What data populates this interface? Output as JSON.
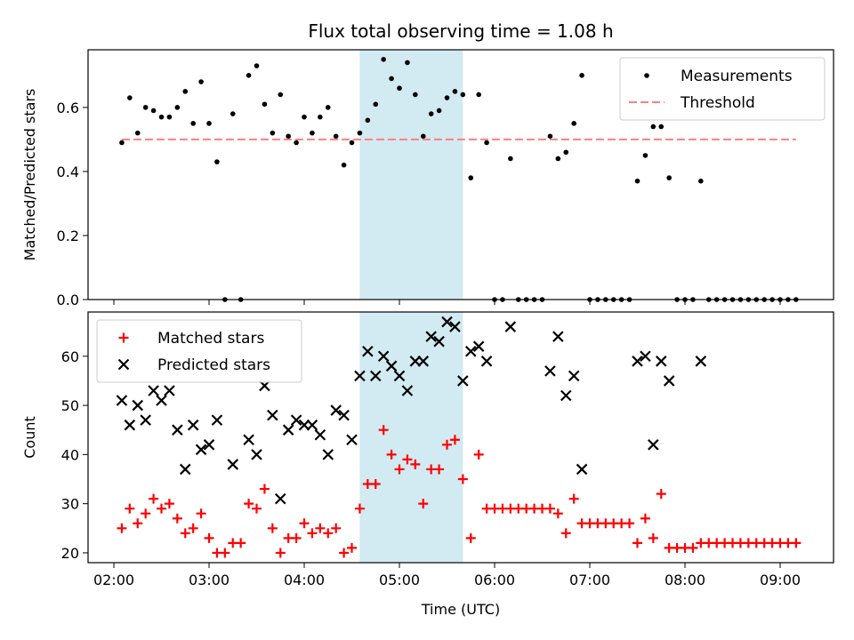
{
  "chart_data": [
    {
      "type": "scatter",
      "title": "Flux total observing time = 1.08 h",
      "xlabel": "",
      "ylabel": "Matched/Predicted stars",
      "xlim": [
        "02:00",
        "09:30"
      ],
      "ylim": [
        0,
        0.78
      ],
      "x_ticks": [
        "02:00",
        "03:00",
        "04:00",
        "05:00",
        "06:00",
        "07:00",
        "08:00",
        "09:00"
      ],
      "y_ticks": [
        "0.0",
        "0.2",
        "0.4",
        "0.6"
      ],
      "highlight_span": {
        "start": "04:35",
        "end": "05:40",
        "color": "#add8e6"
      },
      "legend": {
        "placement": "top-right"
      },
      "series": [
        {
          "name": "Measurements",
          "color": "#000000",
          "marker": "dot",
          "points": [
            [
              "02:05",
              0.49
            ],
            [
              "02:10",
              0.63
            ],
            [
              "02:15",
              0.52
            ],
            [
              "02:20",
              0.6
            ],
            [
              "02:25",
              0.59
            ],
            [
              "02:30",
              0.57
            ],
            [
              "02:35",
              0.57
            ],
            [
              "02:40",
              0.6
            ],
            [
              "02:45",
              0.65
            ],
            [
              "02:50",
              0.55
            ],
            [
              "02:55",
              0.68
            ],
            [
              "03:00",
              0.55
            ],
            [
              "03:05",
              0.43
            ],
            [
              "03:10",
              0.0
            ],
            [
              "03:15",
              0.58
            ],
            [
              "03:20",
              0.0
            ],
            [
              "03:25",
              0.7
            ],
            [
              "03:30",
              0.73
            ],
            [
              "03:35",
              0.61
            ],
            [
              "03:40",
              0.52
            ],
            [
              "03:45",
              0.64
            ],
            [
              "03:50",
              0.51
            ],
            [
              "03:55",
              0.49
            ],
            [
              "04:00",
              0.57
            ],
            [
              "04:05",
              0.52
            ],
            [
              "04:10",
              0.57
            ],
            [
              "04:15",
              0.6
            ],
            [
              "04:20",
              0.51
            ],
            [
              "04:25",
              0.42
            ],
            [
              "04:30",
              0.49
            ],
            [
              "04:35",
              0.52
            ],
            [
              "04:40",
              0.56
            ],
            [
              "04:45",
              0.61
            ],
            [
              "04:50",
              0.75
            ],
            [
              "04:55",
              0.69
            ],
            [
              "05:00",
              0.66
            ],
            [
              "05:05",
              0.74
            ],
            [
              "05:10",
              0.64
            ],
            [
              "05:15",
              0.51
            ],
            [
              "05:20",
              0.58
            ],
            [
              "05:25",
              0.59
            ],
            [
              "05:30",
              0.63
            ],
            [
              "05:35",
              0.65
            ],
            [
              "05:40",
              0.64
            ],
            [
              "05:45",
              0.38
            ],
            [
              "05:50",
              0.64
            ],
            [
              "05:55",
              0.49
            ],
            [
              "06:00",
              0.0
            ],
            [
              "06:05",
              0.0
            ],
            [
              "06:10",
              0.44
            ],
            [
              "06:15",
              0.0
            ],
            [
              "06:20",
              0.0
            ],
            [
              "06:25",
              0.0
            ],
            [
              "06:30",
              0.0
            ],
            [
              "06:35",
              0.51
            ],
            [
              "06:40",
              0.44
            ],
            [
              "06:45",
              0.46
            ],
            [
              "06:50",
              0.55
            ],
            [
              "06:55",
              0.7
            ],
            [
              "07:00",
              0.0
            ],
            [
              "07:05",
              0.0
            ],
            [
              "07:10",
              0.0
            ],
            [
              "07:15",
              0.0
            ],
            [
              "07:20",
              0.0
            ],
            [
              "07:25",
              0.0
            ],
            [
              "07:30",
              0.37
            ],
            [
              "07:35",
              0.45
            ],
            [
              "07:40",
              0.54
            ],
            [
              "07:45",
              0.54
            ],
            [
              "07:50",
              0.38
            ],
            [
              "07:55",
              0.0
            ],
            [
              "08:00",
              0.0
            ],
            [
              "08:05",
              0.0
            ],
            [
              "08:10",
              0.37
            ],
            [
              "08:15",
              0.0
            ],
            [
              "08:20",
              0.0
            ],
            [
              "08:25",
              0.0
            ],
            [
              "08:30",
              0.0
            ],
            [
              "08:35",
              0.0
            ],
            [
              "08:40",
              0.0
            ],
            [
              "08:45",
              0.0
            ],
            [
              "08:50",
              0.0
            ],
            [
              "08:55",
              0.0
            ],
            [
              "09:00",
              0.0
            ],
            [
              "09:05",
              0.0
            ],
            [
              "09:10",
              0.0
            ]
          ]
        },
        {
          "name": "Threshold",
          "color": "#ff7f7f",
          "marker": "dashed-line",
          "points": [
            [
              "02:05",
              0.5
            ],
            [
              "09:10",
              0.5
            ]
          ]
        }
      ]
    },
    {
      "type": "scatter",
      "title": "",
      "xlabel": "Time (UTC)",
      "ylabel": "Count",
      "xlim": [
        "02:00",
        "09:30"
      ],
      "ylim": [
        18,
        69
      ],
      "x_ticks": [
        "02:00",
        "03:00",
        "04:00",
        "05:00",
        "06:00",
        "07:00",
        "08:00",
        "09:00"
      ],
      "y_ticks": [
        "20",
        "30",
        "40",
        "50",
        "60"
      ],
      "highlight_span": {
        "start": "04:35",
        "end": "05:40",
        "color": "#add8e6"
      },
      "legend": {
        "placement": "top-left"
      },
      "series": [
        {
          "name": "Matched stars",
          "color": "#ff0000",
          "marker": "plus",
          "points": [
            [
              "02:05",
              25
            ],
            [
              "02:10",
              29
            ],
            [
              "02:15",
              26
            ],
            [
              "02:20",
              28
            ],
            [
              "02:25",
              31
            ],
            [
              "02:30",
              29
            ],
            [
              "02:35",
              30
            ],
            [
              "02:40",
              27
            ],
            [
              "02:45",
              24
            ],
            [
              "02:50",
              25
            ],
            [
              "02:55",
              28
            ],
            [
              "03:00",
              23
            ],
            [
              "03:05",
              20
            ],
            [
              "03:10",
              20
            ],
            [
              "03:15",
              22
            ],
            [
              "03:20",
              22
            ],
            [
              "03:25",
              30
            ],
            [
              "03:30",
              29
            ],
            [
              "03:35",
              33
            ],
            [
              "03:40",
              25
            ],
            [
              "03:45",
              20
            ],
            [
              "03:50",
              23
            ],
            [
              "03:55",
              23
            ],
            [
              "04:00",
              26
            ],
            [
              "04:05",
              24
            ],
            [
              "04:10",
              25
            ],
            [
              "04:15",
              24
            ],
            [
              "04:20",
              25
            ],
            [
              "04:25",
              20
            ],
            [
              "04:30",
              21
            ],
            [
              "04:35",
              29
            ],
            [
              "04:40",
              34
            ],
            [
              "04:45",
              34
            ],
            [
              "04:50",
              45
            ],
            [
              "04:55",
              40
            ],
            [
              "05:00",
              37
            ],
            [
              "05:05",
              39
            ],
            [
              "05:10",
              38
            ],
            [
              "05:15",
              30
            ],
            [
              "05:20",
              37
            ],
            [
              "05:25",
              37
            ],
            [
              "05:30",
              42
            ],
            [
              "05:35",
              43
            ],
            [
              "05:40",
              35
            ],
            [
              "05:45",
              23
            ],
            [
              "05:50",
              40
            ],
            [
              "05:55",
              29
            ],
            [
              "06:00",
              29
            ],
            [
              "06:05",
              29
            ],
            [
              "06:10",
              29
            ],
            [
              "06:15",
              29
            ],
            [
              "06:20",
              29
            ],
            [
              "06:25",
              29
            ],
            [
              "06:30",
              29
            ],
            [
              "06:35",
              29
            ],
            [
              "06:40",
              28
            ],
            [
              "06:45",
              24
            ],
            [
              "06:50",
              31
            ],
            [
              "06:55",
              26
            ],
            [
              "07:00",
              26
            ],
            [
              "07:05",
              26
            ],
            [
              "07:10",
              26
            ],
            [
              "07:15",
              26
            ],
            [
              "07:20",
              26
            ],
            [
              "07:25",
              26
            ],
            [
              "07:30",
              22
            ],
            [
              "07:35",
              27
            ],
            [
              "07:40",
              23
            ],
            [
              "07:45",
              32
            ],
            [
              "07:50",
              21
            ],
            [
              "07:55",
              21
            ],
            [
              "08:00",
              21
            ],
            [
              "08:05",
              21
            ],
            [
              "08:10",
              22
            ],
            [
              "08:15",
              22
            ],
            [
              "08:20",
              22
            ],
            [
              "08:25",
              22
            ],
            [
              "08:30",
              22
            ],
            [
              "08:35",
              22
            ],
            [
              "08:40",
              22
            ],
            [
              "08:45",
              22
            ],
            [
              "08:50",
              22
            ],
            [
              "08:55",
              22
            ],
            [
              "09:00",
              22
            ],
            [
              "09:05",
              22
            ],
            [
              "09:10",
              22
            ]
          ]
        },
        {
          "name": "Predicted stars",
          "color": "#000000",
          "marker": "x",
          "points": [
            [
              "02:05",
              51
            ],
            [
              "02:10",
              46
            ],
            [
              "02:15",
              50
            ],
            [
              "02:20",
              47
            ],
            [
              "02:25",
              53
            ],
            [
              "02:30",
              51
            ],
            [
              "02:35",
              53
            ],
            [
              "02:40",
              45
            ],
            [
              "02:45",
              37
            ],
            [
              "02:50",
              46
            ],
            [
              "02:55",
              41
            ],
            [
              "03:00",
              42
            ],
            [
              "03:05",
              47
            ],
            [
              "03:15",
              38
            ],
            [
              "03:25",
              43
            ],
            [
              "03:30",
              40
            ],
            [
              "03:35",
              54
            ],
            [
              "03:40",
              48
            ],
            [
              "03:45",
              31
            ],
            [
              "03:50",
              45
            ],
            [
              "03:55",
              47
            ],
            [
              "04:00",
              46
            ],
            [
              "04:05",
              46
            ],
            [
              "04:10",
              44
            ],
            [
              "04:15",
              40
            ],
            [
              "04:20",
              49
            ],
            [
              "04:25",
              48
            ],
            [
              "04:30",
              43
            ],
            [
              "04:35",
              56
            ],
            [
              "04:40",
              61
            ],
            [
              "04:45",
              56
            ],
            [
              "04:50",
              60
            ],
            [
              "04:55",
              58
            ],
            [
              "05:00",
              56
            ],
            [
              "05:05",
              53
            ],
            [
              "05:10",
              59
            ],
            [
              "05:15",
              59
            ],
            [
              "05:20",
              64
            ],
            [
              "05:25",
              63
            ],
            [
              "05:30",
              67
            ],
            [
              "05:35",
              66
            ],
            [
              "05:40",
              55
            ],
            [
              "05:45",
              61
            ],
            [
              "05:50",
              62
            ],
            [
              "05:55",
              59
            ],
            [
              "06:10",
              66
            ],
            [
              "06:35",
              57
            ],
            [
              "06:40",
              64
            ],
            [
              "06:45",
              52
            ],
            [
              "06:50",
              56
            ],
            [
              "06:55",
              37
            ],
            [
              "07:30",
              59
            ],
            [
              "07:35",
              60
            ],
            [
              "07:40",
              42
            ],
            [
              "07:45",
              59
            ],
            [
              "07:50",
              55
            ],
            [
              "08:10",
              59
            ]
          ]
        }
      ]
    }
  ]
}
